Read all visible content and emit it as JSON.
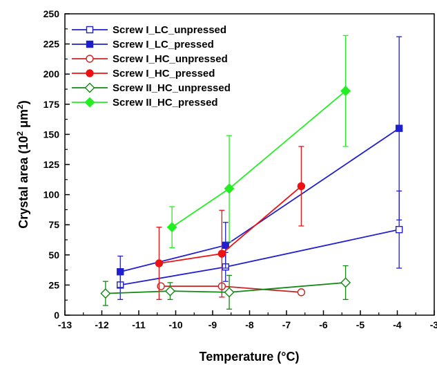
{
  "chart_data": {
    "type": "line",
    "xlabel": "Temperature (°C)",
    "ylabel_main": "Crystal area (10",
    "ylabel_sup": "2",
    "ylabel_unit": " μm",
    "ylabel_unit_sup": "2",
    "ylabel_close": ")",
    "xlim": [
      -13,
      -3
    ],
    "ylim": [
      0,
      250
    ],
    "xticks": [
      -13,
      -12,
      -11,
      -10,
      -9,
      -8,
      -7,
      -6,
      -5,
      -4,
      -3
    ],
    "yticks": [
      0,
      25,
      50,
      75,
      100,
      125,
      150,
      175,
      200,
      225,
      250
    ],
    "xtick_labels": [
      "-13",
      "-12",
      "-11",
      "-10",
      "-9",
      "-8",
      "-7",
      "-6",
      "-5",
      "-4",
      "-3"
    ],
    "ytick_labels": [
      "0",
      "25",
      "50",
      "75",
      "100",
      "125",
      "150",
      "175",
      "200",
      "225",
      "250"
    ],
    "legend_position": "top-left",
    "series": [
      {
        "name": "Screw I_LC_unpressed",
        "color": "#1f1fd0",
        "marker": "square",
        "filled": false,
        "points": [
          {
            "x": -11.5,
            "y": 25,
            "err": 12
          },
          {
            "x": -8.65,
            "y": 40,
            "err": 12
          },
          {
            "x": -3.95,
            "y": 71,
            "err": 32
          }
        ]
      },
      {
        "name": "Screw I_LC_pressed",
        "color": "#1f1fd0",
        "marker": "square",
        "filled": true,
        "points": [
          {
            "x": -11.5,
            "y": 36,
            "err": 13
          },
          {
            "x": -8.65,
            "y": 58,
            "err": 19
          },
          {
            "x": -3.95,
            "y": 155,
            "err": 76
          }
        ]
      },
      {
        "name": "Screw I_HC_unpressed",
        "color": "#cc2222",
        "marker": "circle",
        "filled": false,
        "points": [
          {
            "x": -10.4,
            "y": 24,
            "err": 0
          },
          {
            "x": -8.75,
            "y": 24,
            "err": 0
          },
          {
            "x": -6.6,
            "y": 19,
            "err": 0
          }
        ]
      },
      {
        "name": "Screw I_HC_pressed",
        "color": "#ee1111",
        "marker": "circle",
        "filled": true,
        "points": [
          {
            "x": -10.45,
            "y": 43,
            "err": 30
          },
          {
            "x": -8.75,
            "y": 51,
            "err": 36
          },
          {
            "x": -6.6,
            "y": 107,
            "err": 33
          }
        ]
      },
      {
        "name": "Screw II_HC_unpressed",
        "color": "#118811",
        "marker": "diamond",
        "filled": false,
        "points": [
          {
            "x": -11.9,
            "y": 18,
            "err": 10
          },
          {
            "x": -10.15,
            "y": 20,
            "err": 7
          },
          {
            "x": -8.55,
            "y": 19,
            "err": 14
          },
          {
            "x": -5.4,
            "y": 27,
            "err": 14
          }
        ]
      },
      {
        "name": "Screw II_HC_pressed",
        "color": "#22ee22",
        "marker": "diamond",
        "filled": true,
        "points": [
          {
            "x": -10.1,
            "y": 73,
            "err": 17
          },
          {
            "x": -8.55,
            "y": 105,
            "err": 44
          },
          {
            "x": -5.4,
            "y": 186,
            "err": 46
          }
        ]
      }
    ]
  }
}
